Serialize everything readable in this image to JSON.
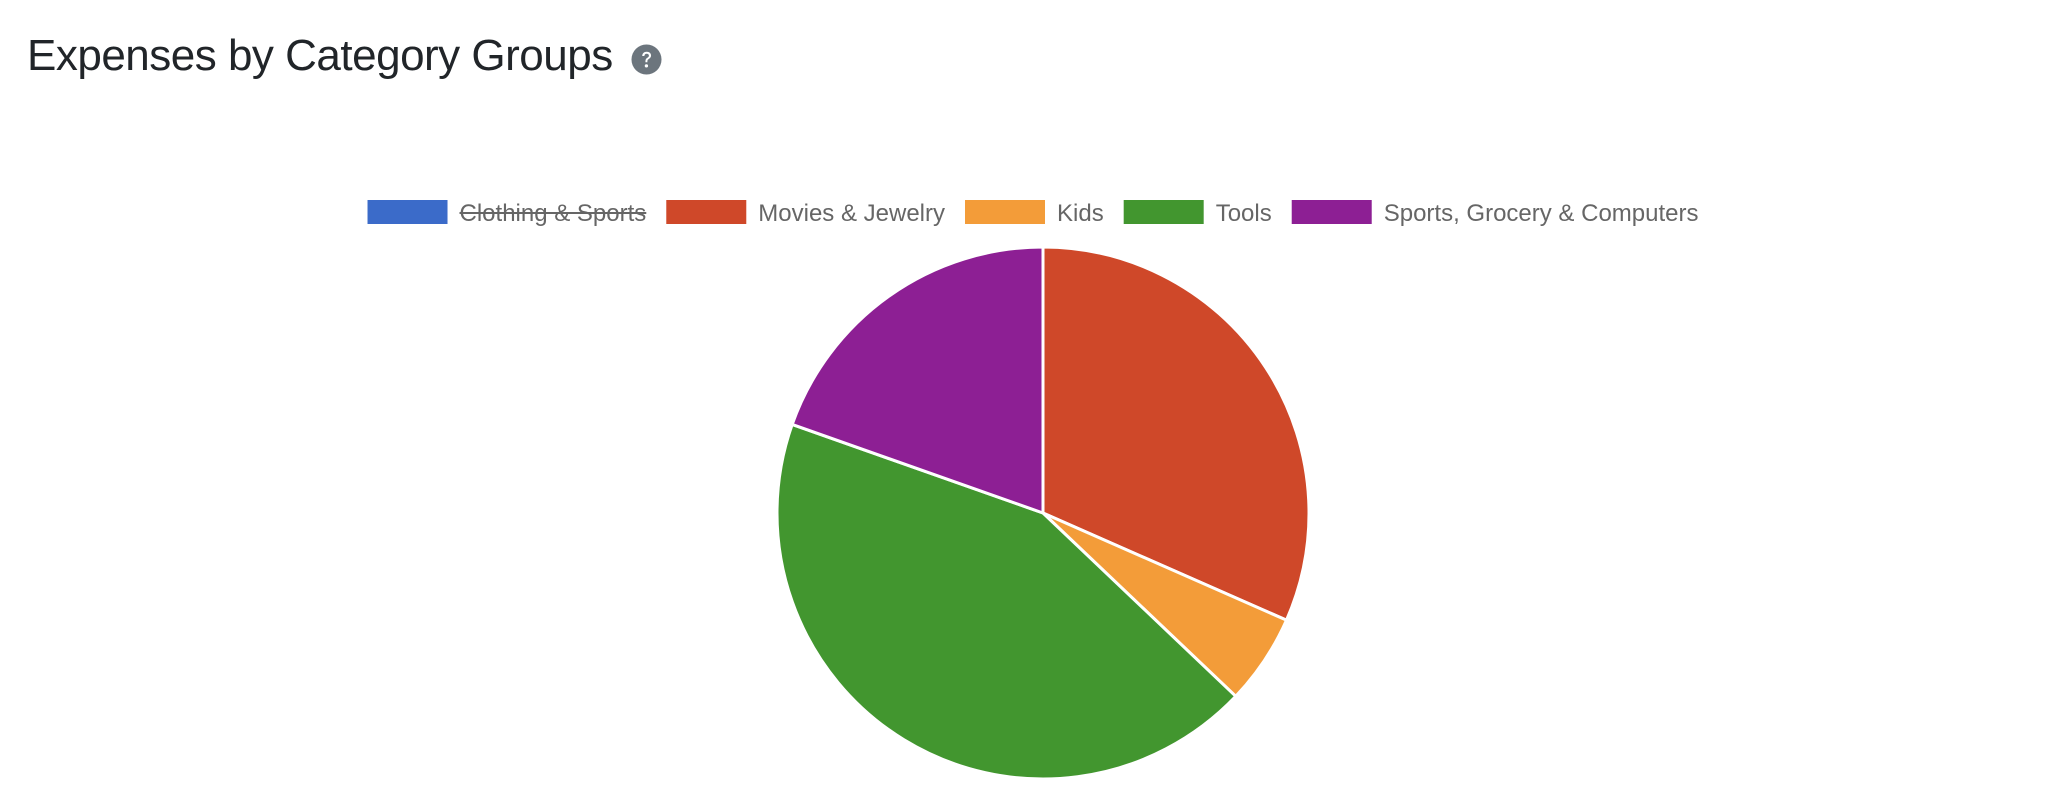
{
  "header": {
    "title": "Expenses by Category Groups",
    "help_icon": "question-circle-icon",
    "help_icon_color": "#6c757d"
  },
  "chart_data": {
    "type": "pie",
    "title": "Expenses by Category Groups",
    "legend_position": "top",
    "unit": "percent of total",
    "slices": [
      {
        "label": "Clothing & Sports",
        "value": 0,
        "color": "#3b6bc9",
        "hidden": true
      },
      {
        "label": "Movies & Jewelry",
        "value": 31.6,
        "color": "#cf4829",
        "hidden": false
      },
      {
        "label": "Kids",
        "value": 5.5,
        "color": "#f39c39",
        "hidden": false
      },
      {
        "label": "Tools",
        "value": 43.3,
        "color": "#42962f",
        "hidden": false
      },
      {
        "label": "Sports, Grocery & Computers",
        "value": 19.6,
        "color": "#8d1f94",
        "hidden": false
      }
    ]
  }
}
